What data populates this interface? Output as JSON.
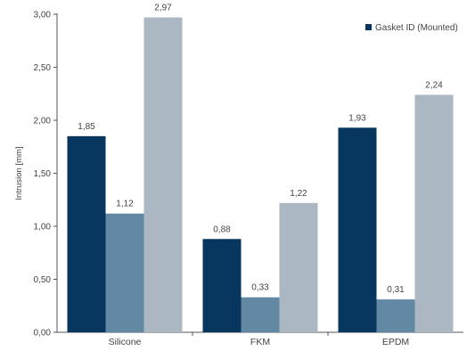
{
  "chart_data": {
    "type": "bar",
    "categories": [
      "Silicone",
      "FKM",
      "EPDM"
    ],
    "series": [
      {
        "name": "Gasket ID (Mounted)",
        "values": [
          1.85,
          0.88,
          1.93
        ],
        "color": "#07365f"
      },
      {
        "values": [
          1.12,
          0.33,
          0.31
        ],
        "color": "#6288a4"
      },
      {
        "values": [
          2.97,
          1.22,
          2.24
        ],
        "color": "#abb8c3"
      }
    ],
    "value_labels": [
      [
        "1,85",
        "0,88",
        "1,93"
      ],
      [
        "1,12",
        "0,33",
        "0,31"
      ],
      [
        "2,97",
        "1,22",
        "2,24"
      ]
    ],
    "ylabel": "Intrusion [mm]",
    "ylim": [
      0,
      3
    ],
    "yticks": [
      0,
      0.5,
      1,
      1.5,
      2,
      2.5,
      3
    ],
    "ytick_labels": [
      "0,00",
      "0,50",
      "1,00",
      "1,50",
      "2,00",
      "2,50",
      "3,00"
    ],
    "grid": false,
    "legend": {
      "placement": "top-right",
      "entries": [
        "Gasket ID (Mounted)"
      ]
    }
  }
}
